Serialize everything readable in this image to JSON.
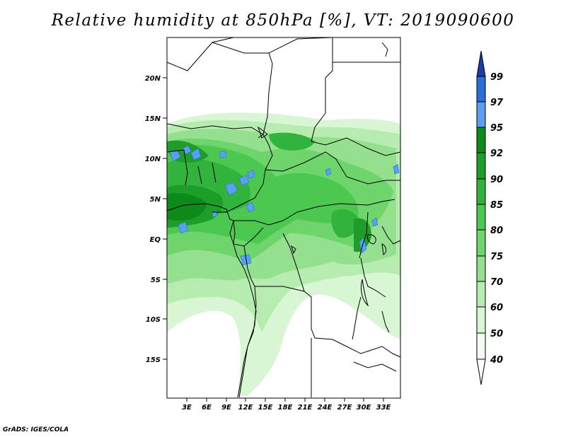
{
  "title": "Relative humidity at 850hPa [%], VT: 2019090600",
  "credit": "GrADS: IGES/COLA",
  "map": {
    "lon_range": [
      0,
      36
    ],
    "lat_range": [
      -20,
      25
    ],
    "lat_ticks": [
      "20N",
      "15N",
      "10N",
      "5N",
      "EQ",
      "5S",
      "10S",
      "15S"
    ],
    "lon_ticks": [
      "3E",
      "6E",
      "9E",
      "12E",
      "15E",
      "18E",
      "21E",
      "24E",
      "27E",
      "30E",
      "33E"
    ]
  },
  "colorbar": {
    "levels": [
      "99",
      "97",
      "95",
      "92",
      "90",
      "85",
      "80",
      "75",
      "70",
      "60",
      "50",
      "40"
    ],
    "colors": [
      "#1e3ca8",
      "#2a6fd8",
      "#5aa0f0",
      "#0e8a1a",
      "#1e9e28",
      "#32b43c",
      "#4cc850",
      "#6ed46c",
      "#94e08e",
      "#b6ecb0",
      "#d8f6d4",
      "#f2fcf0",
      "#ffffff"
    ]
  }
}
